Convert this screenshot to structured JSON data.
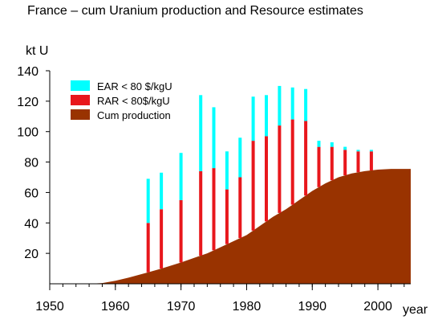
{
  "title": "France – cum Uranium production and Resource estimates",
  "colors": {
    "ear": "#00ffff",
    "rar": "#e8171c",
    "cum_production": "#993300",
    "axis": "#000000"
  },
  "chart_data": {
    "type": "area",
    "title": "France – cum Uranium production and Resource estimates",
    "ylabel": "kt U",
    "xlabel": "year",
    "xlim": [
      1950,
      2005
    ],
    "ylim": [
      0,
      140
    ],
    "x_ticks": [
      1950,
      1960,
      1970,
      1980,
      1990,
      2000
    ],
    "y_ticks": [
      20,
      40,
      60,
      80,
      100,
      120,
      140
    ],
    "grid": false,
    "legend_position": "top-left",
    "legend": [
      "EAR < 80 $/kgU",
      "RAR < 80$/kgU",
      "Cum production"
    ],
    "cum_production": {
      "name": "Cum production",
      "x": [
        1950,
        1956,
        1958,
        1960,
        1962,
        1965,
        1967,
        1970,
        1972,
        1974,
        1976,
        1978,
        1980,
        1982,
        1984,
        1986,
        1988,
        1990,
        1992,
        1994,
        1996,
        1998,
        2000,
        2002,
        2005
      ],
      "y": [
        0,
        0,
        0.5,
        2,
        4,
        7.5,
        10,
        14,
        17,
        20,
        24,
        28,
        32,
        38,
        44,
        49,
        55,
        61,
        66,
        70,
        72.5,
        74,
        75,
        75.5,
        75.5
      ]
    },
    "bars": {
      "years": [
        1965,
        1967,
        1970,
        1973,
        1975,
        1977,
        1979,
        1981,
        1983,
        1985,
        1987,
        1989,
        1991,
        1993,
        1995,
        1997,
        1999
      ],
      "rar_top": [
        40,
        49,
        55,
        74,
        76,
        62,
        70,
        94,
        97,
        104,
        108,
        107,
        90,
        90,
        88,
        87,
        87
      ],
      "ear_top": [
        69,
        73,
        86,
        124,
        116,
        87,
        96,
        123,
        124,
        130,
        129,
        128,
        94,
        93,
        90,
        88,
        88
      ]
    }
  }
}
